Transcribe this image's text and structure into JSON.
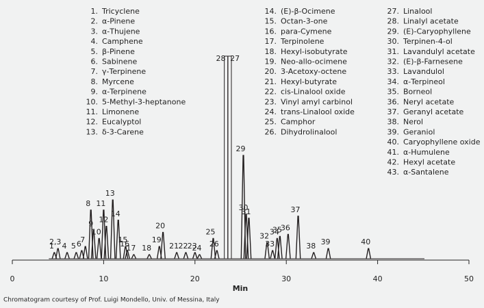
{
  "chart_data": {
    "type": "chromatogram",
    "x_label": "Min",
    "footnote": "Chromatogram courtesy of Prof. Luigi Mondello, Univ. of Messina, Italy",
    "xlim": [
      0,
      50
    ],
    "xticks": [
      0,
      10,
      20,
      30,
      40,
      50
    ],
    "ylim": [
      0,
      100
    ],
    "color": "#231f20",
    "legend": {
      "columns": [
        [
          {
            "number": "1.",
            "name": "Tricyclene"
          },
          {
            "number": "2.",
            "name": "α-Pinene"
          },
          {
            "number": "3.",
            "name": "α-Thujene"
          },
          {
            "number": "4.",
            "name": "Camphene"
          },
          {
            "number": "5.",
            "name": "β-Pinene"
          },
          {
            "number": "6.",
            "name": "Sabinene"
          },
          {
            "number": "7.",
            "name": "γ-Terpinene"
          },
          {
            "number": "8.",
            "name": "Myrcene"
          },
          {
            "number": "9.",
            "name": "α-Terpinene"
          },
          {
            "number": "10.",
            "name": "5-Methyl-3-heptanone"
          },
          {
            "number": "11.",
            "name": "Limonene"
          },
          {
            "number": "12.",
            "name": "Eucalyptol"
          },
          {
            "number": "13.",
            "name": "δ-3-Carene"
          }
        ],
        [
          {
            "number": "14.",
            "name": "(E)-β-Ocimene"
          },
          {
            "number": "15.",
            "name": "Octan-3-one"
          },
          {
            "number": "16.",
            "name": "para-Cymene"
          },
          {
            "number": "17.",
            "name": "Terpinolene"
          },
          {
            "number": "18.",
            "name": "Hexyl-isobutyrate"
          },
          {
            "number": "19.",
            "name": "Neo-allo-ocimene"
          },
          {
            "number": "20.",
            "name": "3-Acetoxy-octene"
          },
          {
            "number": "21.",
            "name": "Hexyl-butyrate"
          },
          {
            "number": "22.",
            "name": "cis-Linalool oxide"
          },
          {
            "number": "23.",
            "name": "Vinyl amyl carbinol"
          },
          {
            "number": "24.",
            "name": "trans-Linalool oxide"
          },
          {
            "number": "25.",
            "name": "Camphor"
          },
          {
            "number": "26.",
            "name": "Dihydrolinalool"
          }
        ],
        [
          {
            "number": "27.",
            "name": "Linalool"
          },
          {
            "number": "28.",
            "name": "Linalyl acetate"
          },
          {
            "number": "29.",
            "name": "(E)-Caryophyllene"
          },
          {
            "number": "30.",
            "name": "Terpinen-4-ol"
          },
          {
            "number": "31.",
            "name": "Lavandulyl acetate"
          },
          {
            "number": "32.",
            "name": "(E)-β-Farnesene"
          },
          {
            "number": "33.",
            "name": "Lavandulol"
          },
          {
            "number": "34.",
            "name": "α-Terpineol"
          },
          {
            "number": "35.",
            "name": "Borneol"
          },
          {
            "number": "36.",
            "name": "Neryl acetate"
          },
          {
            "number": "37.",
            "name": "Geranyl acetate"
          },
          {
            "number": "38.",
            "name": "Nerol"
          },
          {
            "number": "39.",
            "name": "Geraniol"
          },
          {
            "number": "40.",
            "name": "Caryophyllene oxide"
          },
          {
            "number": "41.",
            "name": "α-Humulene"
          },
          {
            "number": "42.",
            "name": "Hexyl acetate"
          },
          {
            "number": "43.",
            "name": "α-Santalene"
          }
        ]
      ]
    },
    "peaks": [
      {
        "label": "1",
        "x": 4.6,
        "height": 3
      },
      {
        "label": "2,3",
        "x": 5.0,
        "height": 5
      },
      {
        "label": "4",
        "x": 6.0,
        "height": 3
      },
      {
        "label": "5",
        "x": 7.0,
        "height": 3
      },
      {
        "label": "6",
        "x": 7.6,
        "height": 4
      },
      {
        "label": "7",
        "x": 8.0,
        "height": 6
      },
      {
        "label": "8",
        "x": 8.6,
        "height": 24
      },
      {
        "label": "9",
        "x": 8.9,
        "height": 14
      },
      {
        "label": "10",
        "x": 9.5,
        "height": 10
      },
      {
        "label": "11",
        "x": 10.0,
        "height": 24
      },
      {
        "label": "12",
        "x": 10.3,
        "height": 16
      },
      {
        "label": "13",
        "x": 11.0,
        "height": 29
      },
      {
        "label": "14",
        "x": 11.6,
        "height": 19
      },
      {
        "label": "15",
        "x": 12.4,
        "height": 6
      },
      {
        "label": "16",
        "x": 12.6,
        "height": 4
      },
      {
        "label": "17",
        "x": 13.3,
        "height": 2
      },
      {
        "label": "18",
        "x": 15.0,
        "height": 2
      },
      {
        "label": "19",
        "x": 16.1,
        "height": 6
      },
      {
        "label": "20",
        "x": 16.5,
        "height": 13
      },
      {
        "label": "21",
        "x": 18.0,
        "height": 3
      },
      {
        "label": "22",
        "x": 19.0,
        "height": 3
      },
      {
        "label": "23",
        "x": 20.0,
        "height": 3
      },
      {
        "label": "24",
        "x": 20.5,
        "height": 2
      },
      {
        "label": "25",
        "x": 22.0,
        "height": 10
      },
      {
        "label": "26",
        "x": 22.4,
        "height": 4
      },
      {
        "label": "27",
        "x": 23.4,
        "height": 100
      },
      {
        "label": "28",
        "x": 23.8,
        "height": 100
      },
      {
        "label": "29",
        "x": 25.3,
        "height": 51
      },
      {
        "label": "30",
        "x": 25.6,
        "height": 22
      },
      {
        "label": "31",
        "x": 25.9,
        "height": 20
      },
      {
        "label": "32",
        "x": 27.9,
        "height": 8
      },
      {
        "label": "33",
        "x": 28.5,
        "height": 4
      },
      {
        "label": "34",
        "x": 29.0,
        "height": 10
      },
      {
        "label": "35",
        "x": 29.3,
        "height": 11
      },
      {
        "label": "36",
        "x": 30.2,
        "height": 12
      },
      {
        "label": "37",
        "x": 31.3,
        "height": 21
      },
      {
        "label": "38",
        "x": 33.0,
        "height": 3
      },
      {
        "label": "39",
        "x": 34.6,
        "height": 5
      },
      {
        "label": "40",
        "x": 39.0,
        "height": 5
      }
    ]
  }
}
